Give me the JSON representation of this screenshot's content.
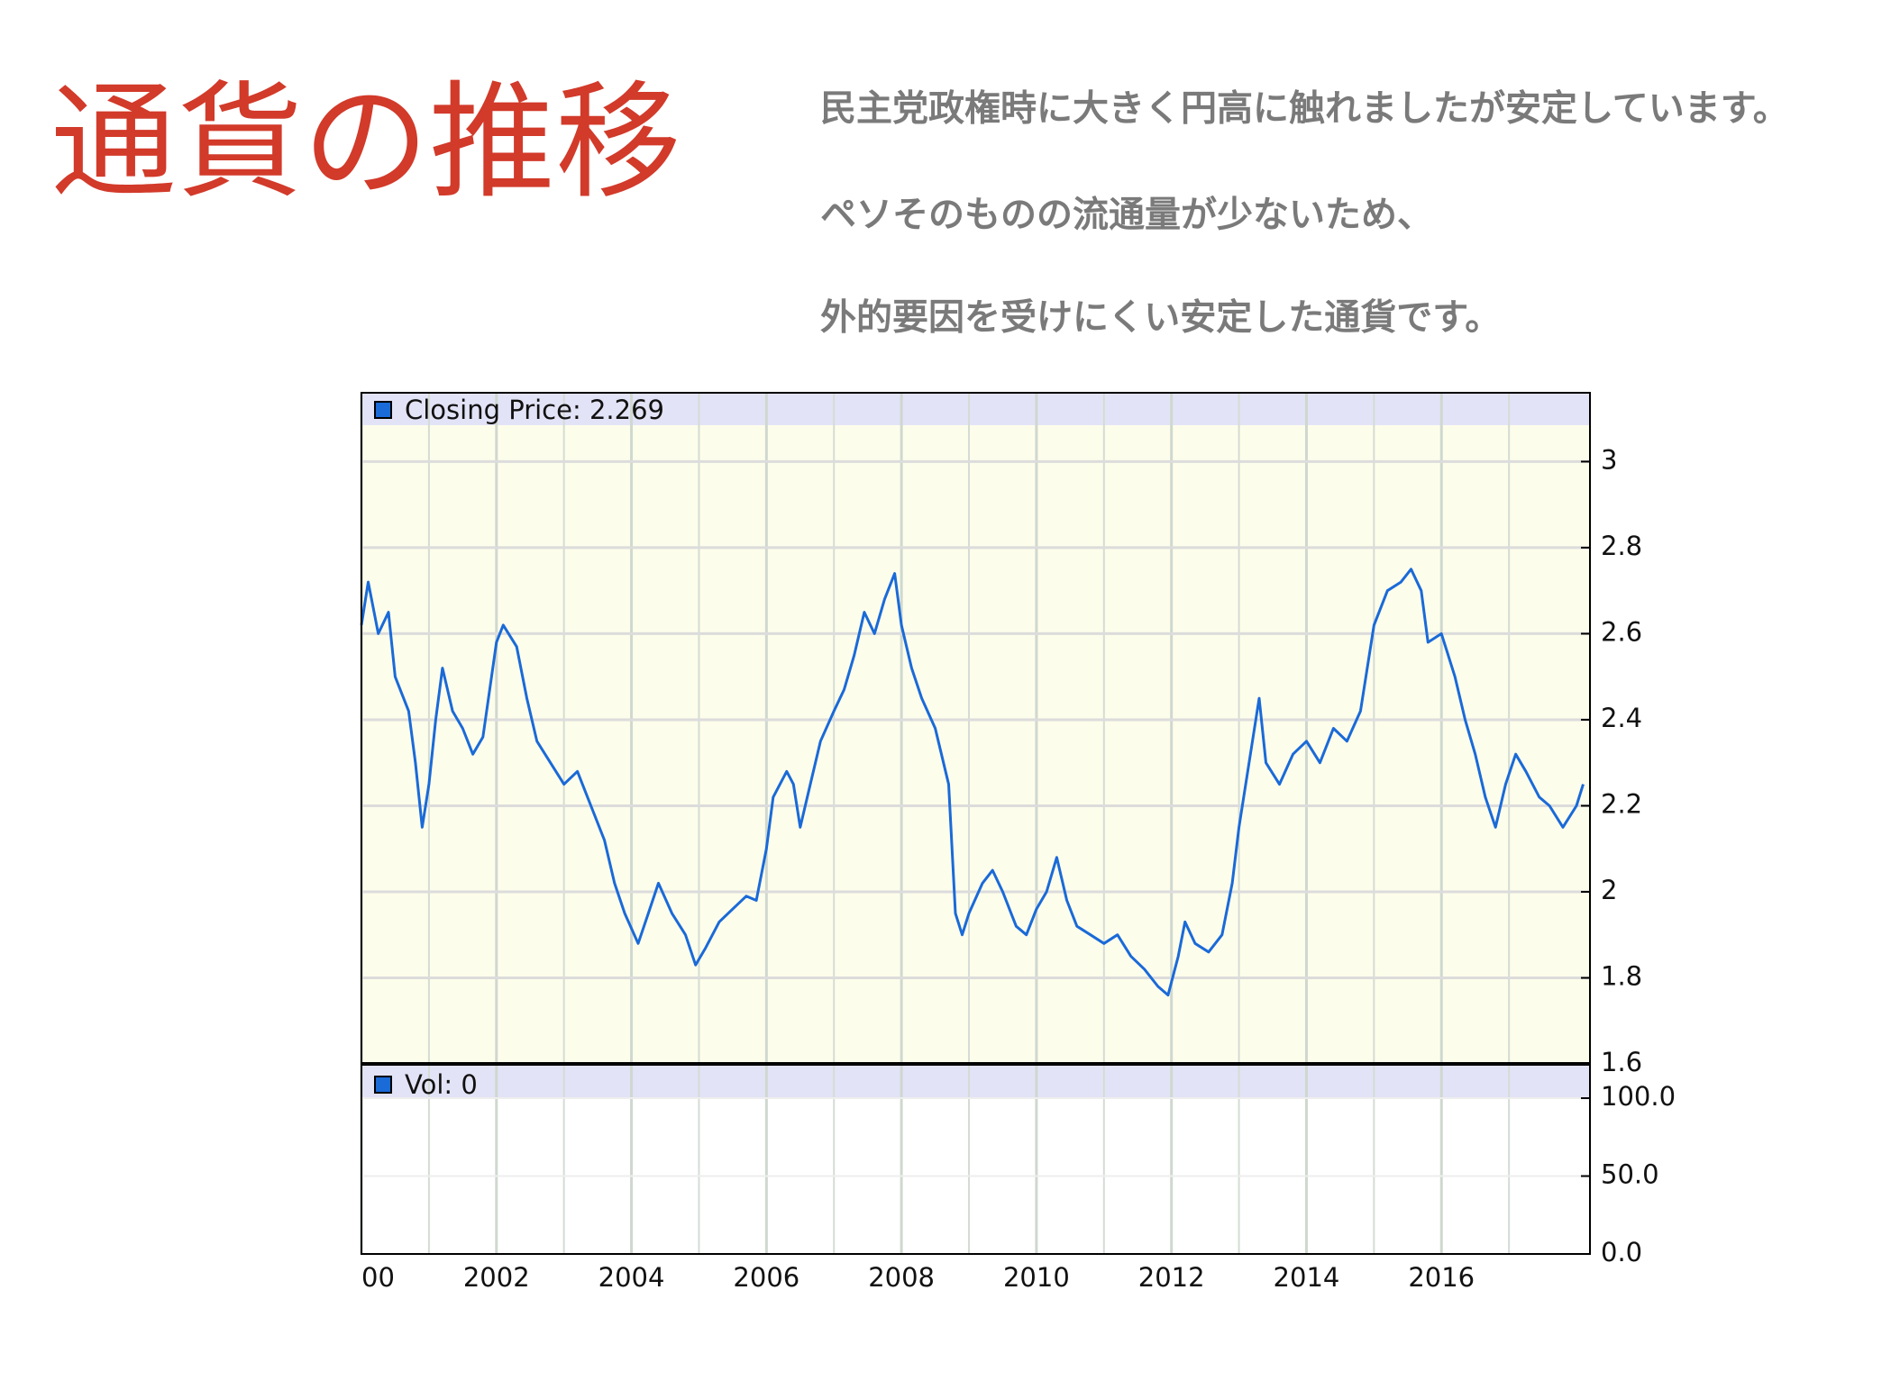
{
  "page": {
    "title": "通貨の推移",
    "body": [
      "民主党政権時に大きく円高に触れましたが安定しています。",
      "ペソそのものの流通量が少ないため、",
      "外的要因を受けにくい安定した通貨です。"
    ]
  },
  "chart_data": {
    "type": "line",
    "x": [
      2000.0,
      2000.1,
      2000.25,
      2000.4,
      2000.5,
      2000.7,
      2000.8,
      2000.9,
      2001.0,
      2001.1,
      2001.2,
      2001.35,
      2001.5,
      2001.65,
      2001.8,
      2002.0,
      2002.1,
      2002.3,
      2002.45,
      2002.6,
      2002.8,
      2003.0,
      2003.2,
      2003.4,
      2003.6,
      2003.75,
      2003.9,
      2004.1,
      2004.25,
      2004.4,
      2004.6,
      2004.8,
      2004.95,
      2005.1,
      2005.3,
      2005.5,
      2005.7,
      2005.85,
      2006.0,
      2006.1,
      2006.3,
      2006.4,
      2006.5,
      2006.65,
      2006.8,
      2007.0,
      2007.15,
      2007.3,
      2007.45,
      2007.6,
      2007.75,
      2007.9,
      2008.0,
      2008.15,
      2008.3,
      2008.5,
      2008.7,
      2008.8,
      2008.9,
      2009.0,
      2009.2,
      2009.35,
      2009.5,
      2009.7,
      2009.85,
      2010.0,
      2010.15,
      2010.3,
      2010.45,
      2010.6,
      2010.8,
      2011.0,
      2011.2,
      2011.4,
      2011.6,
      2011.8,
      2011.95,
      2012.1,
      2012.2,
      2012.35,
      2012.55,
      2012.75,
      2012.9,
      2013.0,
      2013.15,
      2013.3,
      2013.4,
      2013.6,
      2013.8,
      2014.0,
      2014.2,
      2014.4,
      2014.6,
      2014.8,
      2015.0,
      2015.2,
      2015.4,
      2015.55,
      2015.7,
      2015.8,
      2016.0,
      2016.2,
      2016.35,
      2016.5,
      2016.65,
      2016.8,
      2016.95,
      2017.1,
      2017.25,
      2017.45,
      2017.6,
      2017.8,
      2018.0,
      2018.1
    ],
    "series": [
      {
        "name": "Closing Price: 2.269",
        "color": "#1a6ad8",
        "values": [
          2.62,
          2.72,
          2.6,
          2.65,
          2.5,
          2.42,
          2.3,
          2.15,
          2.25,
          2.4,
          2.52,
          2.42,
          2.38,
          2.32,
          2.36,
          2.58,
          2.62,
          2.57,
          2.45,
          2.35,
          2.3,
          2.25,
          2.28,
          2.2,
          2.12,
          2.02,
          1.95,
          1.88,
          1.95,
          2.02,
          1.95,
          1.9,
          1.83,
          1.87,
          1.93,
          1.96,
          1.99,
          1.98,
          2.1,
          2.22,
          2.28,
          2.25,
          2.15,
          2.25,
          2.35,
          2.42,
          2.47,
          2.55,
          2.65,
          2.6,
          2.68,
          2.74,
          2.62,
          2.52,
          2.45,
          2.38,
          2.25,
          1.95,
          1.9,
          1.95,
          2.02,
          2.05,
          2.0,
          1.92,
          1.9,
          1.96,
          2.0,
          2.08,
          1.98,
          1.92,
          1.9,
          1.88,
          1.9,
          1.85,
          1.82,
          1.78,
          1.76,
          1.85,
          1.93,
          1.88,
          1.86,
          1.9,
          2.02,
          2.15,
          2.3,
          2.45,
          2.3,
          2.25,
          2.32,
          2.35,
          2.3,
          2.38,
          2.35,
          2.42,
          2.62,
          2.7,
          2.72,
          2.75,
          2.7,
          2.58,
          2.6,
          2.5,
          2.4,
          2.32,
          2.22,
          2.15,
          2.25,
          2.32,
          2.28,
          2.22,
          2.2,
          2.15,
          2.2,
          2.25
        ]
      }
    ],
    "xlim": [
      2000,
      2018.2
    ],
    "xticks": [
      {
        "value": 2000,
        "label": "00"
      },
      2002,
      2004,
      2006,
      2008,
      2010,
      2012,
      2014,
      2016
    ],
    "xminor": [
      2001,
      2003,
      2005,
      2007,
      2009,
      2011,
      2013,
      2015,
      2017
    ],
    "ylim": [
      1.6,
      3.16
    ],
    "yticks": [
      1.6,
      1.8,
      2,
      2.2,
      2.4,
      2.6,
      2.8,
      3
    ],
    "grid": true,
    "volume": {
      "name": "Vol: 0",
      "color": "#1a6ad8",
      "ylim": [
        0,
        122
      ],
      "yticks": [
        {
          "value": 0,
          "label": "0.0"
        },
        {
          "value": 50,
          "label": "50.0"
        },
        {
          "value": 100,
          "label": "100.0"
        }
      ]
    }
  }
}
